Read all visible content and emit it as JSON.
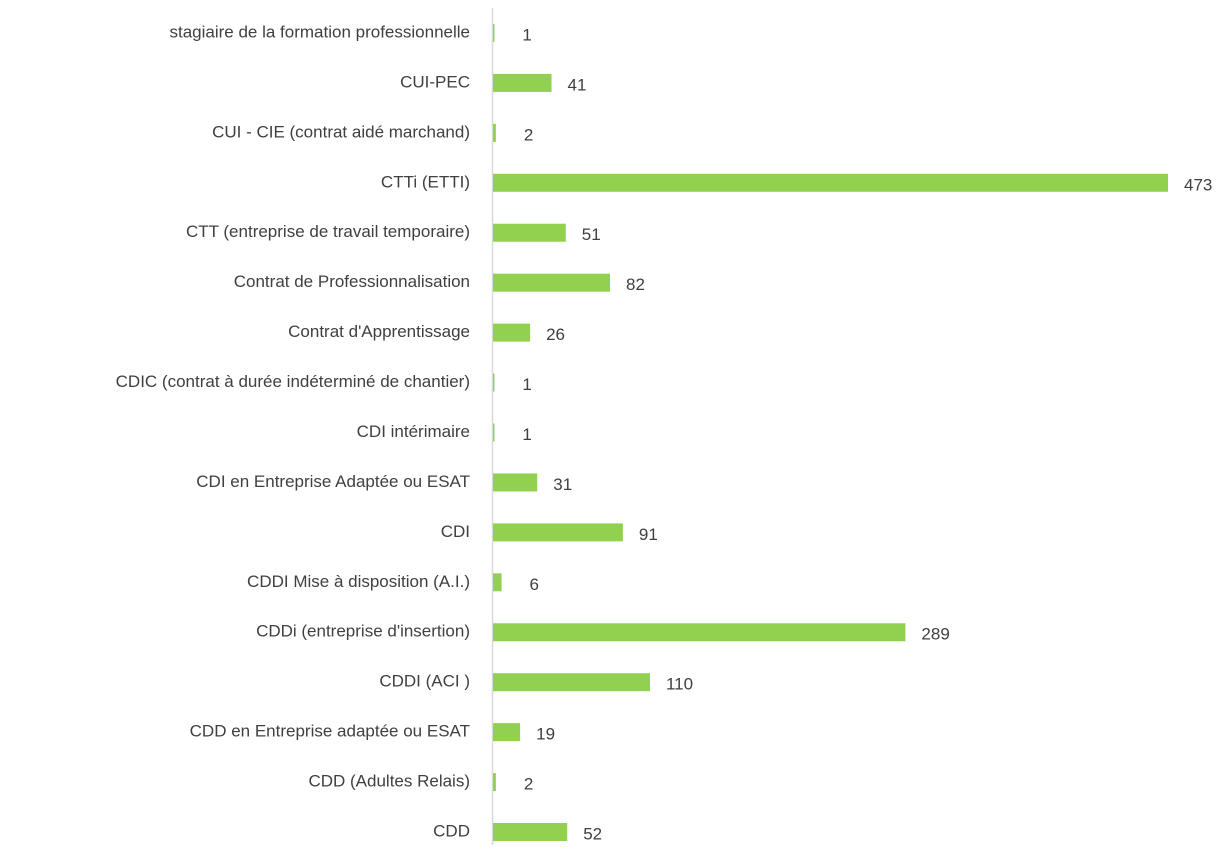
{
  "chart_data": {
    "type": "bar",
    "orientation": "horizontal",
    "categories": [
      "stagiaire de la formation professionnelle",
      "CUI-PEC",
      "CUI - CIE (contrat aidé marchand)",
      "CTTi (ETTI)",
      "CTT (entreprise de travail temporaire)",
      "Contrat de Professionnalisation",
      "Contrat d'Apprentissage",
      "CDIC (contrat à durée indéterminé de chantier)",
      "CDI intérimaire",
      "CDI en Entreprise Adaptée ou ESAT",
      "CDI",
      "CDDI Mise à disposition (A.I.)",
      "CDDi (entreprise d'insertion)",
      "CDDI (ACI )",
      "CDD en Entreprise adaptée ou ESAT",
      "CDD (Adultes Relais)",
      "CDD"
    ],
    "values": [
      1,
      41,
      2,
      473,
      51,
      82,
      26,
      1,
      1,
      31,
      91,
      6,
      289,
      110,
      19,
      2,
      52
    ],
    "color": "#92d050"
  }
}
